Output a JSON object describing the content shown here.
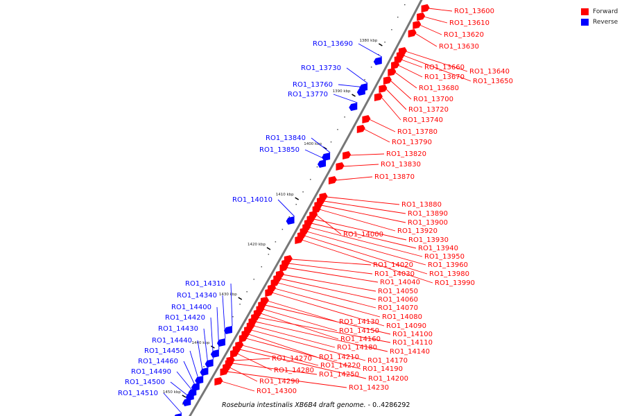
{
  "legend": [
    {
      "label": "Forward",
      "color": "#ff0000"
    },
    {
      "label": "Reverse",
      "color": "#0000ff"
    }
  ],
  "caption": {
    "organism": "Roseburia intestinalis XB6B4 draft genome.",
    "range": " - 0..4286292"
  },
  "colors": {
    "forward": "#ff0000",
    "reverse": "#0000ff",
    "backbone": "#777777",
    "tick": "#000000"
  },
  "ticks": [
    {
      "label": "1380 kbp"
    },
    {
      "label": "1390 kbp"
    },
    {
      "label": "1400 kbp"
    },
    {
      "label": "1410 kbp"
    },
    {
      "label": "1420 kbp"
    },
    {
      "label": "1430 kbp"
    },
    {
      "label": "1440 kbp"
    },
    {
      "label": "1450 kbp"
    }
  ],
  "forward_genes": [
    "RO1_13600",
    "RO1_13610",
    "RO1_13620",
    "RO1_13630",
    "RO1_13640",
    "RO1_13650",
    "RO1_13660",
    "RO1_13670",
    "RO1_13680",
    "RO1_13700",
    "RO1_13720",
    "RO1_13740",
    "RO1_13780",
    "RO1_13790",
    "RO1_13820",
    "RO1_13830",
    "RO1_13870",
    "RO1_13880",
    "RO1_13890",
    "RO1_13900",
    "RO1_13920",
    "RO1_14000",
    "RO1_13930",
    "RO1_13940",
    "RO1_13950",
    "RO1_13960",
    "RO1_13980",
    "RO1_13990",
    "RO1_14020",
    "RO1_14030",
    "RO1_14040",
    "RO1_14050",
    "RO1_14060",
    "RO1_14070",
    "RO1_14080",
    "RO1_14090",
    "RO1_14130",
    "RO1_14100",
    "RO1_14150",
    "RO1_14160",
    "RO1_14110",
    "RO1_14140",
    "RO1_14180",
    "RO1_14170",
    "RO1_14210",
    "RO1_14190",
    "RO1_14270",
    "RO1_14220",
    "RO1_14200",
    "RO1_14280",
    "RO1_14250",
    "RO1_14290",
    "RO1_14230",
    "RO1_14300"
  ],
  "reverse_genes": [
    "RO1_13690",
    "RO1_13730",
    "RO1_13760",
    "RO1_13770",
    "RO1_13840",
    "RO1_13850",
    "RO1_14010",
    "RO1_14310",
    "RO1_14340",
    "RO1_14400",
    "RO1_14420",
    "RO1_14430",
    "RO1_14440",
    "RO1_14450",
    "RO1_14460",
    "RO1_14490",
    "RO1_14500",
    "RO1_14510"
  ]
}
